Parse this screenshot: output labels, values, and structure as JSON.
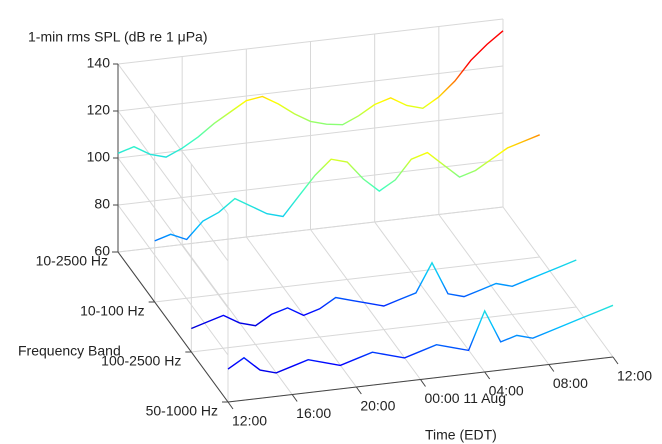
{
  "chart_data": {
    "type": "waterfall",
    "zlabel": "1-min rms SPL (dB re 1 μPa)",
    "xlabel": "Time (EDT)",
    "ylabel": "Frequency Band",
    "zlim": [
      60,
      140
    ],
    "zticks": [
      60,
      80,
      100,
      120,
      140
    ],
    "xlim": [
      0,
      24
    ],
    "xticks": [
      {
        "value": 0,
        "label": "12:00"
      },
      {
        "value": 4,
        "label": "16:00"
      },
      {
        "value": 8,
        "label": "20:00"
      },
      {
        "value": 12,
        "label": "00:00 11 Aug"
      },
      {
        "value": 16,
        "label": "04:00"
      },
      {
        "value": 20,
        "label": "08:00"
      },
      {
        "value": 24,
        "label": "12:00"
      }
    ],
    "categories": [
      "10-2500 Hz",
      "10-100 Hz",
      "100-2500 Hz",
      "50-1000 Hz"
    ],
    "grid": true,
    "colormap": [
      "#00008f",
      "#0000ff",
      "#00bfff",
      "#40ffbf",
      "#ffff00",
      "#ff0000"
    ],
    "x": [
      0,
      1,
      2,
      3,
      4,
      5,
      6,
      7,
      8,
      9,
      10,
      11,
      12,
      13,
      14,
      15,
      16,
      17,
      18,
      19,
      20,
      21,
      22,
      23,
      24
    ],
    "series": [
      {
        "name": "10-2500 Hz",
        "values": [
          102,
          104,
          100,
          98,
          101,
          105,
          110,
          114,
          118,
          119,
          115,
          110,
          106,
          104,
          103,
          106,
          110,
          112,
          108,
          106,
          110,
          116,
          124,
          130,
          135
        ]
      },
      {
        "name": "10-100 Hz",
        "values": [
          86,
          88,
          85,
          92,
          95,
          100,
          96,
          92,
          90,
          98,
          106,
          112,
          110,
          102,
          96,
          100,
          108,
          110,
          104,
          98,
          100,
          104,
          108,
          110,
          112
        ]
      },
      {
        "name": "100-2500 Hz",
        "values": [
          70,
          72,
          74,
          70,
          68,
          72,
          74,
          70,
          72,
          76,
          74,
          72,
          70,
          72,
          74,
          86,
          72,
          70,
          72,
          74,
          72,
          74,
          76,
          78,
          80
        ]
      },
      {
        "name": "50-1000 Hz",
        "values": [
          74,
          78,
          72,
          70,
          72,
          74,
          72,
          70,
          72,
          74,
          72,
          70,
          72,
          74,
          72,
          70,
          86,
          72,
          74,
          72,
          74,
          76,
          78,
          80,
          82
        ]
      }
    ]
  }
}
